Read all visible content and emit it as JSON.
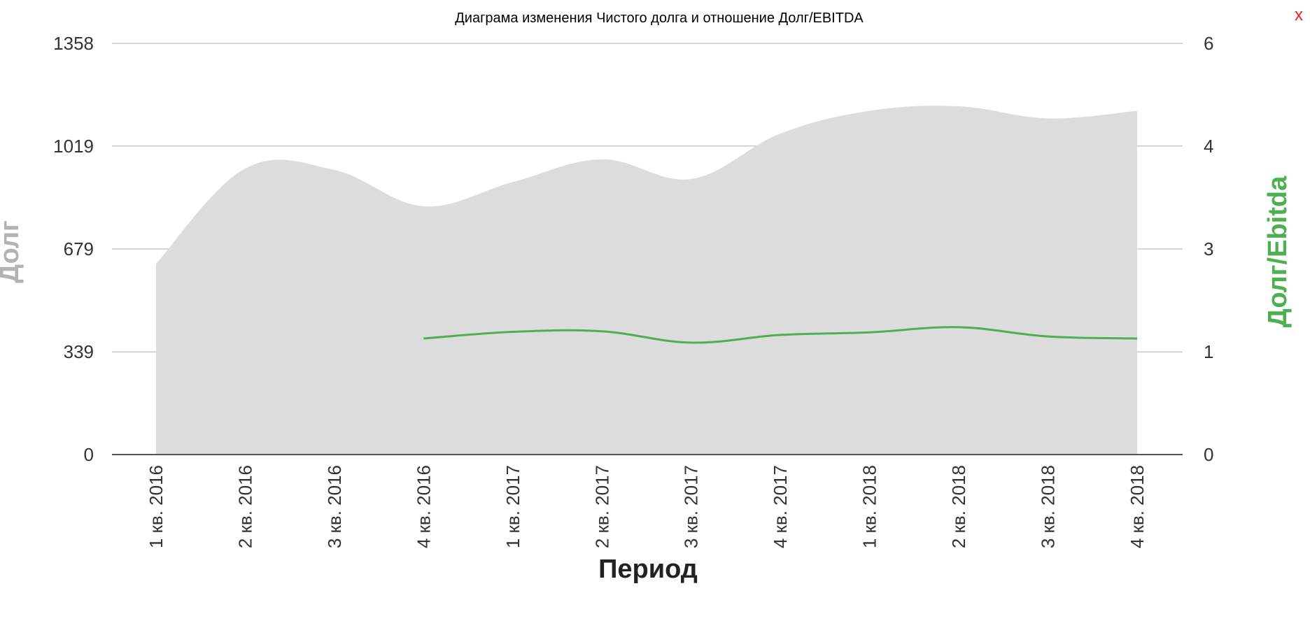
{
  "close_label": "x",
  "chart_data": {
    "type": "area",
    "title": "Диаграма изменения Чистого долга и отношение Долг/EBITDA",
    "xlabel": "Период",
    "ylabel_left": "Долг",
    "ylabel_right": "Долг/Ebitda",
    "categories": [
      "1 кв. 2016",
      "2 кв. 2016",
      "3 кв. 2016",
      "4 кв. 2016",
      "1 кв. 2017",
      "2 кв. 2017",
      "3 кв. 2017",
      "4 кв. 2017",
      "1 кв. 2018",
      "2 кв. 2018",
      "3 кв. 2018",
      "4 кв. 2018"
    ],
    "left_ticks": [
      "0",
      "339",
      "679",
      "1019",
      "1358"
    ],
    "right_ticks": [
      "0",
      "1",
      "3",
      "4",
      "6"
    ],
    "grid": true,
    "series": [
      {
        "axis": "left",
        "type": "area",
        "values": [
          630,
          945,
          940,
          820,
          900,
          975,
          910,
          1060,
          1135,
          1150,
          1110,
          1135
        ]
      },
      {
        "axis": "right",
        "type": "line",
        "values": [
          null,
          null,
          null,
          1.26,
          1.39,
          1.4,
          1.18,
          1.33,
          1.38,
          1.48,
          1.3,
          1.26
        ]
      }
    ],
    "colors": {
      "area": "#dcdcdc",
      "line": "#4caf50",
      "left_label": "#b3b3b3",
      "right_label": "#4caf50",
      "close": "#e8231f"
    }
  }
}
